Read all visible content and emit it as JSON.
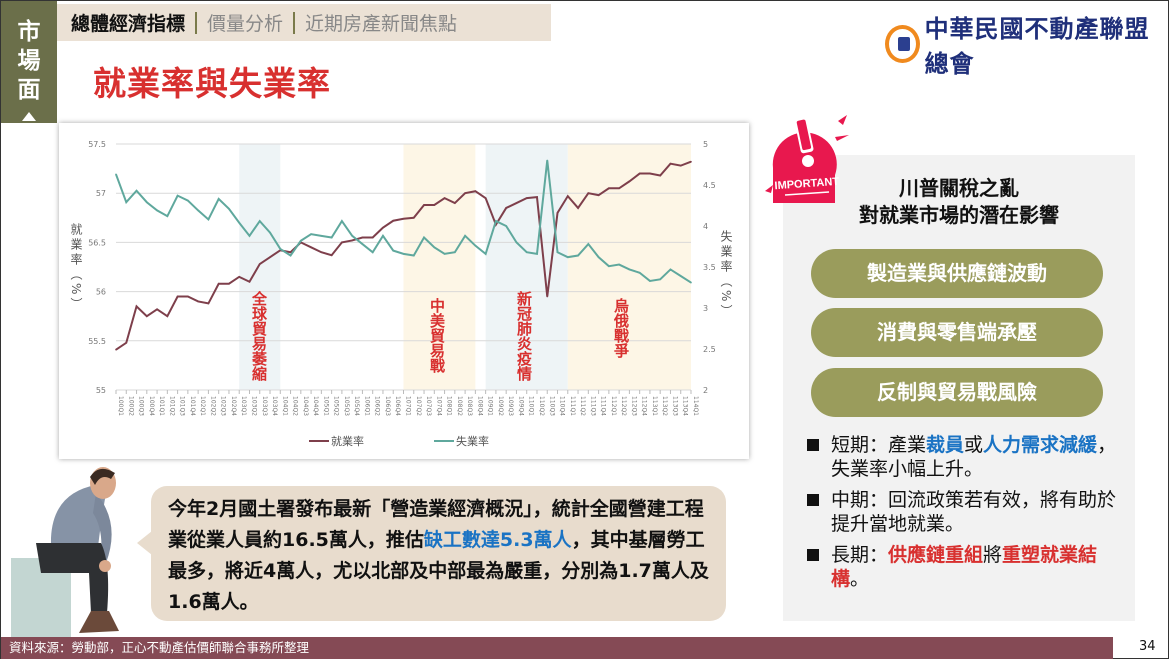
{
  "section_tab": {
    "label": "市場面"
  },
  "nav": {
    "items": [
      "總體經濟指標",
      "價量分析",
      "近期房產新聞焦點"
    ],
    "active": 0
  },
  "page_title": "就業率與失業率",
  "logo": {
    "text": "中華民國不動產聯盟總會"
  },
  "important_badge": "IMPORTANT",
  "panel": {
    "heading_line1": "川普關稅之亂",
    "heading_line2": "對就業市場的潛在影響",
    "pills": [
      "製造業與供應鏈波動",
      "消費與零售端承壓",
      "反制與貿易戰風險"
    ],
    "bullets": [
      [
        {
          "t": "短期：產業"
        },
        {
          "t": "裁員",
          "c": "blue"
        },
        {
          "t": "或"
        },
        {
          "t": "人力需求減緩",
          "c": "blue"
        },
        {
          "t": "，失業率小幅上升。"
        }
      ],
      [
        {
          "t": "中期：回流政策若有效，將有助於提升當地就業。"
        }
      ],
      [
        {
          "t": "長期："
        },
        {
          "t": "供應鏈重組",
          "c": "red"
        },
        {
          "t": "將"
        },
        {
          "t": "重塑就業結構",
          "c": "red"
        },
        {
          "t": "。"
        }
      ]
    ]
  },
  "bubble": [
    {
      "t": "今年2月國土署發布最新「營造業經濟概況」，統計全國營建工程業從業人員約16.5萬人，推估"
    },
    {
      "t": "缺工數達5.3萬人",
      "c": "blue"
    },
    {
      "t": "，其中基層勞工最多，將近4萬人，尤以北部及中部最為嚴重，分別為1.7萬人及1.6萬人。"
    }
  ],
  "footer": {
    "source": "資料來源：勞動部，正心不動產估價師聯合事務所整理",
    "page": "34"
  },
  "chart_data": {
    "type": "line",
    "ylabel_left": "就業率（%）",
    "ylabel_right": "失業率（%）",
    "ylim_left": [
      55,
      57.5
    ],
    "yticks_left": [
      "55",
      "55.5",
      "56",
      "56.5",
      "57",
      "57.5"
    ],
    "ylim_right": [
      2,
      5
    ],
    "yticks_right": [
      "2",
      "2.5",
      "3",
      "3.5",
      "4",
      "4.5",
      "5"
    ],
    "grid": true,
    "legend": "bottom",
    "x": [
      "100Q1",
      "100Q2",
      "100Q3",
      "100Q4",
      "101Q1",
      "101Q2",
      "101Q3",
      "101Q4",
      "102Q1",
      "102Q2",
      "102Q3",
      "102Q4",
      "103Q1",
      "103Q2",
      "103Q3",
      "103Q4",
      "104Q1",
      "104Q2",
      "104Q3",
      "104Q4",
      "105Q1",
      "105Q2",
      "105Q3",
      "105Q4",
      "106Q1",
      "106Q2",
      "106Q3",
      "106Q4",
      "107Q1",
      "107Q2",
      "107Q3",
      "107Q4",
      "108Q1",
      "108Q2",
      "108Q3",
      "108Q4",
      "109Q1",
      "109Q2",
      "109Q3",
      "109Q4",
      "110Q1",
      "110Q2",
      "110Q3",
      "110Q4",
      "111Q1",
      "111Q2",
      "111Q3",
      "111Q4",
      "112Q1",
      "112Q2",
      "112Q3",
      "112Q4",
      "113Q1",
      "113Q2",
      "113Q3",
      "113Q4",
      "114Q1"
    ],
    "series": [
      {
        "name": "就業率",
        "axis": "left",
        "color": "#7e3f4b",
        "values": [
          55.41,
          55.48,
          55.85,
          55.75,
          55.82,
          55.75,
          55.95,
          55.95,
          55.9,
          55.88,
          56.08,
          56.08,
          56.15,
          56.1,
          56.28,
          56.35,
          56.42,
          56.4,
          56.5,
          56.45,
          56.4,
          56.37,
          56.5,
          56.52,
          56.55,
          56.55,
          56.65,
          56.72,
          56.74,
          56.75,
          56.88,
          56.88,
          56.95,
          56.9,
          57.0,
          57.02,
          56.95,
          56.68,
          56.85,
          56.9,
          56.95,
          56.96,
          55.95,
          56.8,
          56.97,
          56.85,
          57.0,
          56.98,
          57.05,
          57.05,
          57.12,
          57.2,
          57.2,
          57.18,
          57.3,
          57.28,
          57.32
        ]
      },
      {
        "name": "失業率",
        "axis": "right",
        "color": "#5fa89d",
        "values": [
          4.63,
          4.29,
          4.43,
          4.29,
          4.19,
          4.12,
          4.37,
          4.31,
          4.19,
          4.08,
          4.33,
          4.21,
          4.04,
          3.88,
          4.06,
          3.92,
          3.72,
          3.64,
          3.82,
          3.9,
          3.88,
          3.86,
          4.06,
          3.88,
          3.78,
          3.68,
          3.88,
          3.7,
          3.66,
          3.64,
          3.86,
          3.74,
          3.66,
          3.68,
          3.88,
          3.76,
          3.66,
          4.06,
          4.0,
          3.8,
          3.68,
          3.66,
          4.8,
          3.68,
          3.62,
          3.64,
          3.78,
          3.62,
          3.51,
          3.53,
          3.47,
          3.43,
          3.33,
          3.35,
          3.47,
          3.39,
          3.31
        ]
      }
    ],
    "annotations": [
      {
        "label": "全球貿易萎縮",
        "from": "103Q1",
        "to": "104Q1",
        "color": "#eef4f6"
      },
      {
        "label": "中美貿易戰",
        "from": "107Q1",
        "to": "108Q4",
        "color": "#fdf6e6"
      },
      {
        "label": "新冠肺炎疫情",
        "from": "109Q1",
        "to": "111Q1",
        "color": "#eef4f6"
      },
      {
        "label": "烏俄戰爭",
        "from": "111Q1",
        "to": "114Q1",
        "color": "#fdf6e6"
      }
    ],
    "annotation_color": "#d8302f"
  }
}
